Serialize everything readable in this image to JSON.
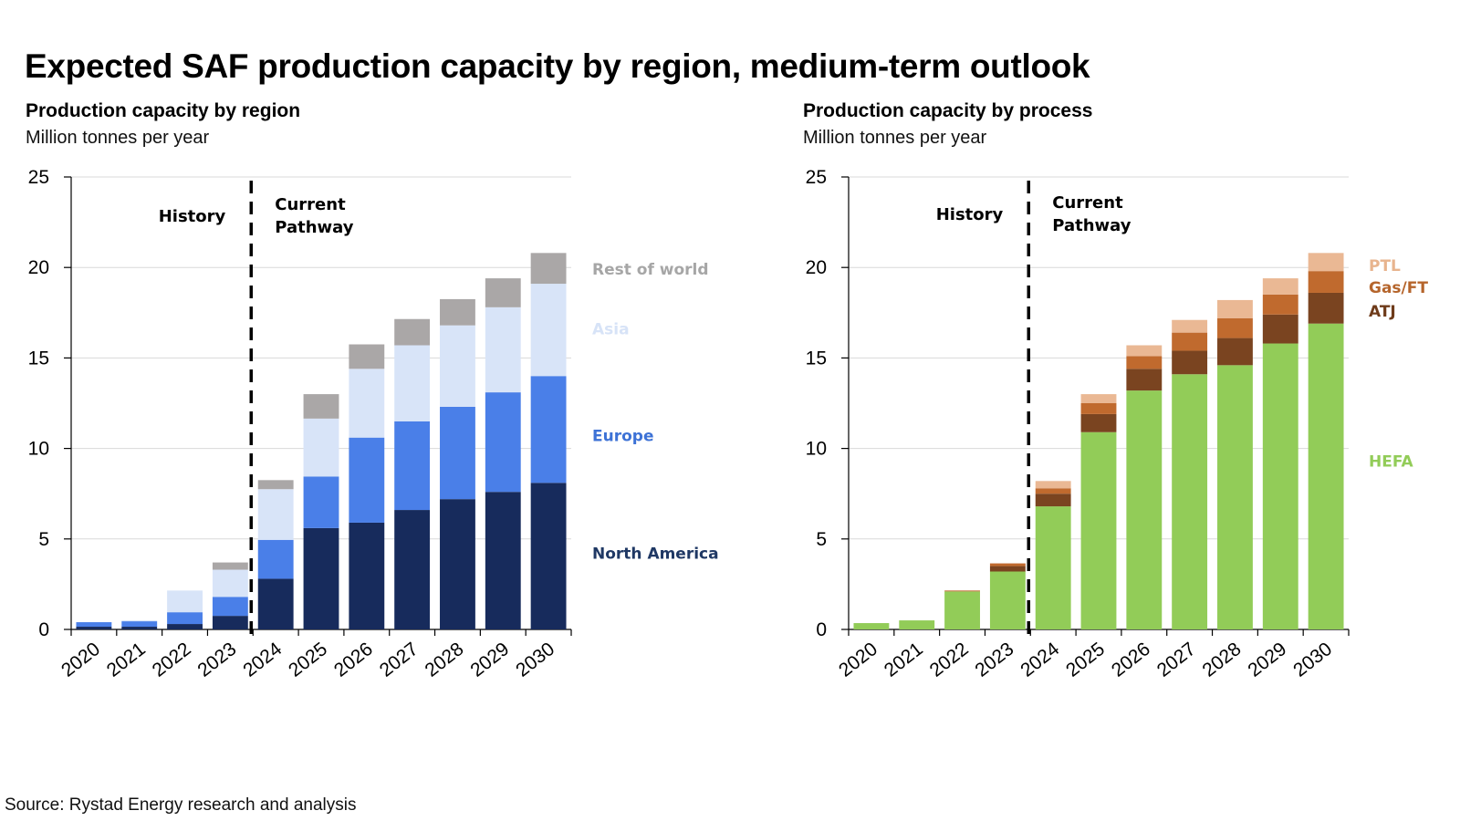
{
  "title": "Expected SAF production capacity by region, medium-term outlook",
  "source": "Source: Rystad Energy research and analysis",
  "chart_data": [
    {
      "type": "bar",
      "stacked": true,
      "title": "Production capacity by region",
      "subtitle": "Million tonnes per year",
      "ylim": [
        0,
        25
      ],
      "yticks": [
        0,
        5,
        10,
        15,
        20,
        25
      ],
      "grid": true,
      "legend": "right",
      "categories": [
        "2020",
        "2021",
        "2022",
        "2023",
        "2024",
        "2025",
        "2026",
        "2027",
        "2028",
        "2029",
        "2030"
      ],
      "annotations": {
        "left": "History",
        "right_line1": "Current",
        "right_line2": "Pathway",
        "divider_after": "2023"
      },
      "series": [
        {
          "name": "North America",
          "color": "#172b5c",
          "label_color": "#1f3864",
          "label_value": 4.2,
          "values": [
            0.15,
            0.15,
            0.3,
            0.75,
            2.8,
            5.6,
            5.9,
            6.6,
            7.2,
            7.6,
            8.1
          ]
        },
        {
          "name": "Europe",
          "color": "#4a7fe8",
          "label_color": "#3d72d6",
          "label_value": 10.7,
          "values": [
            0.25,
            0.3,
            0.65,
            1.05,
            2.15,
            2.85,
            4.7,
            4.9,
            5.1,
            5.5,
            5.9
          ]
        },
        {
          "name": "Asia",
          "color": "#d8e4f8",
          "label_color": "#d7e3f7",
          "label_value": 16.6,
          "values": [
            0.0,
            0.05,
            1.2,
            1.5,
            2.8,
            3.2,
            3.8,
            4.2,
            4.5,
            4.7,
            5.1
          ]
        },
        {
          "name": "Rest of world",
          "color": "#aaa7a7",
          "label_color": "#a6a6a6",
          "label_value": 19.9,
          "values": [
            0.0,
            0.0,
            0.0,
            0.4,
            0.5,
            1.35,
            1.35,
            1.45,
            1.45,
            1.6,
            1.7
          ]
        }
      ]
    },
    {
      "type": "bar",
      "stacked": true,
      "title": "Production capacity by process",
      "subtitle": "Million tonnes per year",
      "ylim": [
        0,
        25
      ],
      "yticks": [
        0,
        5,
        10,
        15,
        20,
        25
      ],
      "grid": true,
      "legend": "right",
      "categories": [
        "2020",
        "2021",
        "2022",
        "2023",
        "2024",
        "2025",
        "2026",
        "2027",
        "2028",
        "2029",
        "2030"
      ],
      "annotations": {
        "left": "History",
        "right_line1": "Current",
        "right_line2": "Pathway",
        "divider_after": "2023"
      },
      "series": [
        {
          "name": "HEFA",
          "color": "#92cc58",
          "label_color": "#92cc58",
          "label_value": 9.3,
          "values": [
            0.35,
            0.5,
            2.1,
            3.2,
            6.8,
            10.9,
            13.2,
            14.1,
            14.6,
            15.8,
            16.9
          ]
        },
        {
          "name": "ATJ",
          "color": "#7a4420",
          "label_color": "#6e3b1a",
          "label_value": 17.6,
          "values": [
            0.0,
            0.0,
            0.0,
            0.3,
            0.7,
            1.0,
            1.2,
            1.3,
            1.5,
            1.6,
            1.7
          ]
        },
        {
          "name": "Gas/FT",
          "color": "#c06a2e",
          "label_color": "#b5652c",
          "label_value": 18.9,
          "values": [
            0.0,
            0.0,
            0.05,
            0.15,
            0.3,
            0.6,
            0.7,
            1.0,
            1.1,
            1.1,
            1.2
          ]
        },
        {
          "name": "PTL",
          "color": "#eab894",
          "label_color": "#e8b48e",
          "label_value": 20.1,
          "values": [
            0.0,
            0.0,
            0.0,
            0.0,
            0.4,
            0.5,
            0.6,
            0.7,
            1.0,
            0.9,
            1.0
          ]
        }
      ]
    }
  ]
}
